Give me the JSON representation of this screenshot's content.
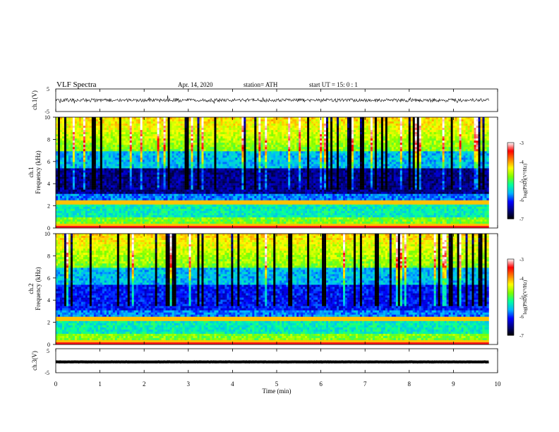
{
  "header": {
    "title": "VLF  Spectra",
    "date": "Apr. 14, 2020",
    "station": "station= ATH",
    "start": "start  UT  =   15: 0  : 1"
  },
  "chart_data": [
    {
      "type": "line",
      "id": "ch1-waveform",
      "ylabel": "ch.1(V)",
      "ylim": [
        -5,
        5
      ],
      "yticks": [
        "5",
        "-5"
      ],
      "xlim": [
        0,
        10
      ],
      "data_end_min": 9.8,
      "trace_level": 0,
      "trace_amplitude": 1.5,
      "color": "#000000"
    },
    {
      "type": "heatmap",
      "id": "ch1-spectrogram",
      "ylabel": "ch.1\nFrequency  (kHz)",
      "ylim": [
        0,
        10
      ],
      "yticks": [
        "0",
        "2",
        "4",
        "6",
        "8",
        "10"
      ],
      "xlim": [
        0,
        10
      ],
      "data_end_min": 9.8,
      "colorbar": {
        "label": "log(PSD)(V²/Hz)",
        "range": [
          -7,
          -3
        ],
        "ticks": [
          "-3",
          "-4",
          "-5",
          "-6",
          "-7"
        ],
        "colors": [
          "#000000",
          "#00007f",
          "#0000ff",
          "#00b4ff",
          "#00ffa0",
          "#7fff00",
          "#ffff00",
          "#ff8000",
          "#ff0000",
          "#ffffff"
        ]
      }
    },
    {
      "type": "heatmap",
      "id": "ch2-spectrogram",
      "ylabel": "ch.2\nFrequency  (kHz)",
      "ylim": [
        0,
        10
      ],
      "yticks": [
        "0",
        "2",
        "4",
        "6",
        "8",
        "10"
      ],
      "xlim": [
        0,
        10
      ],
      "data_end_min": 9.8,
      "colorbar": {
        "label": "log(PSD)(V²/Hz)",
        "range": [
          -7,
          -3
        ],
        "ticks": [
          "-3",
          "-4",
          "-5",
          "-6",
          "-7"
        ],
        "colors": [
          "#000000",
          "#00007f",
          "#0000ff",
          "#00b4ff",
          "#00ffa0",
          "#7fff00",
          "#ffff00",
          "#ff8000",
          "#ff0000",
          "#ffffff"
        ]
      }
    },
    {
      "type": "line",
      "id": "ch3-waveform",
      "ylabel": "ch.3(V)",
      "ylim": [
        -5,
        5
      ],
      "yticks": [
        "5",
        "-5"
      ],
      "xlim": [
        0,
        10
      ],
      "data_end_min": 9.8,
      "trace_level": -0.5,
      "trace_amplitude": 0.1,
      "color": "#000000"
    }
  ],
  "x_axis": {
    "label": "Time  (min)",
    "ticks": [
      "0",
      "1",
      "2",
      "3",
      "4",
      "5",
      "6",
      "7",
      "8",
      "9",
      "10"
    ]
  }
}
